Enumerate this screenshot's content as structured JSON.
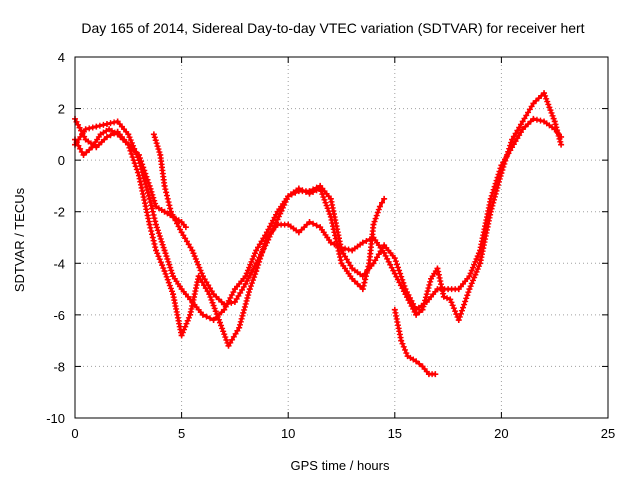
{
  "chart_data": {
    "type": "scatter",
    "title": "Day 165 of 2014, Sidereal Day-to-day VTEC variation (SDTVAR) for receiver hert",
    "xlabel": "GPS time / hours",
    "ylabel": "SDTVAR / TECUs",
    "xlim": [
      0,
      25
    ],
    "ylim": [
      -10,
      4
    ],
    "xticks": [
      "0",
      "5",
      "10",
      "15",
      "20",
      "25"
    ],
    "yticks": [
      "4",
      "2",
      "0",
      "-2",
      "-4",
      "-6",
      "-8",
      "-10"
    ],
    "grid": true,
    "marker": "+",
    "color": "#ff0000",
    "series": [
      {
        "name": "track-1",
        "points": [
          [
            0.0,
            0.6
          ],
          [
            0.5,
            1.2
          ],
          [
            1.0,
            1.3
          ],
          [
            1.5,
            1.4
          ],
          [
            2.0,
            1.5
          ],
          [
            2.5,
            1.0
          ],
          [
            3.0,
            0.0
          ],
          [
            3.5,
            -1.5
          ],
          [
            3.8,
            -2.5
          ],
          [
            4.2,
            -3.5
          ],
          [
            4.6,
            -4.5
          ],
          [
            5.0,
            -5.0
          ],
          [
            5.5,
            -5.5
          ],
          [
            6.0,
            -6.0
          ],
          [
            6.5,
            -6.2
          ],
          [
            7.0,
            -5.8
          ],
          [
            7.5,
            -5.0
          ],
          [
            8.0,
            -4.5
          ],
          [
            8.5,
            -3.5
          ],
          [
            9.0,
            -2.8
          ],
          [
            9.5,
            -2.0
          ],
          [
            10.0,
            -1.4
          ],
          [
            10.5,
            -1.2
          ],
          [
            11.0,
            -1.2
          ],
          [
            11.5,
            -1.0
          ],
          [
            12.0,
            -1.5
          ],
          [
            12.5,
            -3.5
          ],
          [
            13.0,
            -4.2
          ],
          [
            13.5,
            -4.5
          ],
          [
            14.0,
            -4.0
          ],
          [
            14.5,
            -3.3
          ],
          [
            15.0,
            -3.8
          ],
          [
            15.5,
            -5.0
          ],
          [
            16.0,
            -5.8
          ],
          [
            16.5,
            -5.5
          ],
          [
            17.0,
            -5.0
          ],
          [
            17.5,
            -5.0
          ],
          [
            18.0,
            -5.0
          ],
          [
            18.5,
            -4.5
          ],
          [
            19.0,
            -3.5
          ],
          [
            19.5,
            -1.5
          ],
          [
            20.0,
            -0.2
          ],
          [
            20.5,
            0.5
          ],
          [
            21.0,
            1.2
          ],
          [
            21.5,
            1.6
          ],
          [
            22.0,
            1.5
          ],
          [
            22.5,
            1.2
          ],
          [
            22.8,
            0.9
          ]
        ]
      },
      {
        "name": "track-2",
        "points": [
          [
            0.0,
            1.6
          ],
          [
            0.5,
            0.8
          ],
          [
            1.0,
            0.5
          ],
          [
            1.5,
            0.9
          ],
          [
            2.0,
            1.1
          ],
          [
            2.5,
            0.6
          ],
          [
            3.0,
            -0.6
          ],
          [
            3.5,
            -2.5
          ],
          [
            3.8,
            -3.5
          ],
          [
            4.2,
            -4.3
          ],
          [
            4.6,
            -5.2
          ],
          [
            5.0,
            -6.8
          ],
          [
            5.4,
            -6.0
          ],
          [
            5.8,
            -4.5
          ],
          [
            6.3,
            -5.2
          ],
          [
            6.8,
            -6.3
          ],
          [
            7.2,
            -7.2
          ],
          [
            7.7,
            -6.5
          ],
          [
            8.2,
            -5.0
          ],
          [
            8.5,
            -4.3
          ],
          [
            9.0,
            -3.0
          ],
          [
            9.5,
            -2.5
          ],
          [
            10.0,
            -2.5
          ],
          [
            10.5,
            -2.8
          ],
          [
            11.0,
            -2.4
          ],
          [
            11.5,
            -2.6
          ],
          [
            12.0,
            -3.2
          ],
          [
            12.5,
            -3.4
          ],
          [
            13.0,
            -3.5
          ],
          [
            13.5,
            -3.2
          ],
          [
            14.0,
            -3.0
          ],
          [
            14.5,
            -3.6
          ],
          [
            15.0,
            -4.4
          ],
          [
            15.5,
            -5.2
          ],
          [
            16.0,
            -6.0
          ],
          [
            16.3,
            -5.8
          ],
          [
            16.7,
            -4.6
          ],
          [
            17.0,
            -4.2
          ],
          [
            17.3,
            -5.3
          ],
          [
            17.6,
            -5.4
          ],
          [
            18.0,
            -6.2
          ],
          [
            18.5,
            -5.0
          ],
          [
            19.0,
            -4.0
          ],
          [
            19.5,
            -2.0
          ],
          [
            20.0,
            -0.5
          ],
          [
            20.5,
            0.8
          ],
          [
            21.0,
            1.5
          ],
          [
            21.5,
            2.2
          ],
          [
            22.0,
            2.6
          ],
          [
            22.5,
            1.5
          ],
          [
            22.8,
            0.6
          ]
        ]
      },
      {
        "name": "track-3",
        "points": [
          [
            0.0,
            0.8
          ],
          [
            0.4,
            0.2
          ],
          [
            0.8,
            0.5
          ],
          [
            1.2,
            1.0
          ],
          [
            1.6,
            1.2
          ],
          [
            2.0,
            1.0
          ],
          [
            2.5,
            0.6
          ],
          [
            3.0,
            0.2
          ],
          [
            3.5,
            -1.0
          ],
          [
            3.8,
            -1.8
          ],
          [
            4.2,
            -2.0
          ],
          [
            4.6,
            -2.2
          ],
          [
            5.0,
            -2.4
          ],
          [
            5.2,
            -2.6
          ]
        ]
      },
      {
        "name": "track-4",
        "points": [
          [
            3.7,
            1.0
          ],
          [
            4.0,
            0.2
          ],
          [
            4.2,
            -1.0
          ],
          [
            4.5,
            -2.0
          ],
          [
            5.0,
            -2.8
          ],
          [
            5.5,
            -3.5
          ],
          [
            6.0,
            -4.5
          ],
          [
            6.5,
            -5.2
          ],
          [
            7.0,
            -5.6
          ],
          [
            7.5,
            -5.5
          ],
          [
            8.0,
            -4.8
          ],
          [
            8.5,
            -4.0
          ],
          [
            9.0,
            -3.2
          ],
          [
            9.5,
            -2.3
          ],
          [
            10.0,
            -1.4
          ],
          [
            10.5,
            -1.1
          ],
          [
            11.0,
            -1.3
          ],
          [
            11.5,
            -1.1
          ],
          [
            12.0,
            -2.2
          ],
          [
            12.5,
            -4.0
          ],
          [
            13.0,
            -4.6
          ],
          [
            13.5,
            -5.0
          ],
          [
            13.8,
            -4.0
          ],
          [
            14.0,
            -2.5
          ],
          [
            14.3,
            -1.8
          ],
          [
            14.5,
            -1.5
          ]
        ]
      },
      {
        "name": "track-5",
        "points": [
          [
            15.0,
            -5.8
          ],
          [
            15.3,
            -7.0
          ],
          [
            15.6,
            -7.6
          ],
          [
            16.0,
            -7.8
          ],
          [
            16.3,
            -8.0
          ],
          [
            16.6,
            -8.3
          ],
          [
            16.9,
            -8.3
          ]
        ]
      }
    ]
  }
}
